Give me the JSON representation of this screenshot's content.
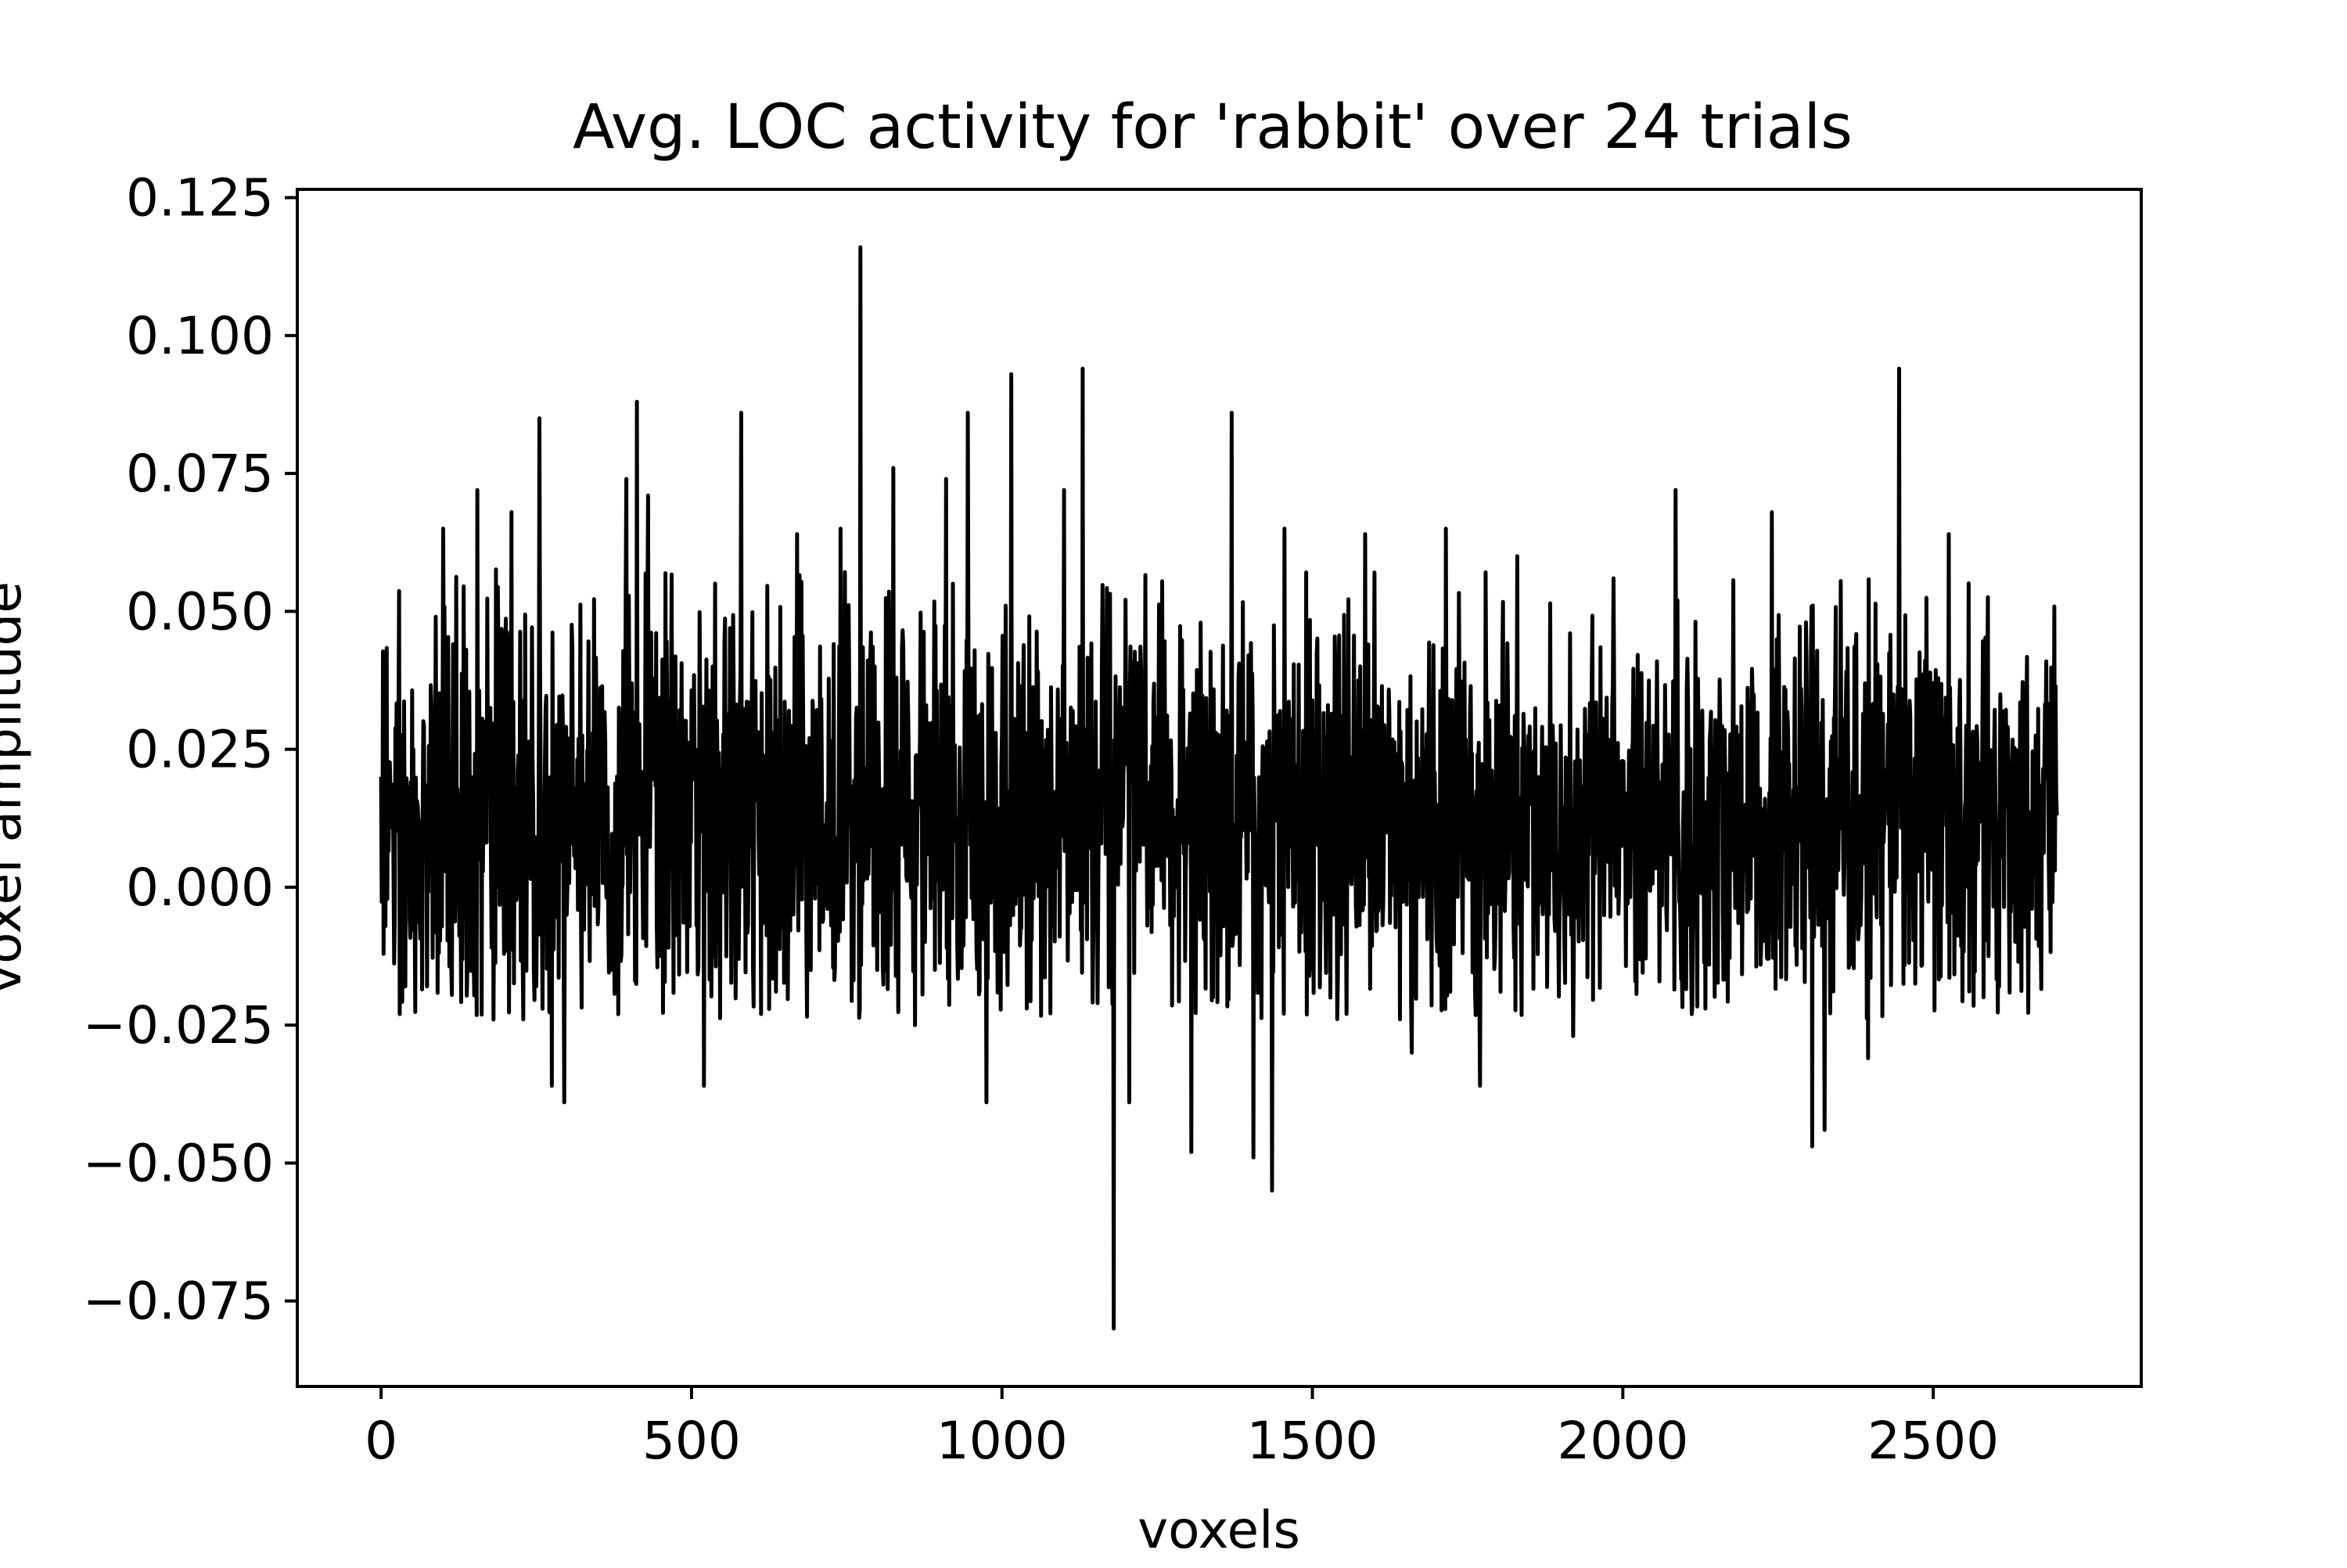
{
  "chart_data": {
    "type": "line",
    "title": "Avg. LOC activity for 'rabbit' over 24 trials",
    "xlabel": "voxels",
    "ylabel": "voxel amplitude",
    "xlim": [
      -135,
      2835
    ],
    "ylim": [
      -0.0905,
      0.1265
    ],
    "xticks": [
      0,
      500,
      1000,
      1500,
      2000,
      2500
    ],
    "xtick_labels": [
      "0",
      "500",
      "1000",
      "1500",
      "2000",
      "2500"
    ],
    "yticks": [
      -0.075,
      -0.05,
      -0.025,
      0.0,
      0.025,
      0.05,
      0.075,
      0.1,
      0.125
    ],
    "ytick_labels": [
      "−0.075",
      "−0.050",
      "−0.025",
      "0.000",
      "0.025",
      "0.050",
      "0.075",
      "0.100",
      "0.125"
    ],
    "grid": false,
    "legend": "none",
    "line_color": "#000000",
    "series": [
      {
        "x_start": 0,
        "x_step": 1,
        "count": 2700,
        "mean": 0.012,
        "noise_sd": 0.019,
        "peaks": [
          {
            "x": 0,
            "y": 0.02
          },
          {
            "x": 5,
            "y": 0.028
          },
          {
            "x": 30,
            "y": -0.023
          },
          {
            "x": 100,
            "y": 0.065
          },
          {
            "x": 155,
            "y": 0.072
          },
          {
            "x": 210,
            "y": 0.068
          },
          {
            "x": 255,
            "y": 0.085
          },
          {
            "x": 275,
            "y": -0.036
          },
          {
            "x": 295,
            "y": -0.039
          },
          {
            "x": 395,
            "y": 0.074
          },
          {
            "x": 412,
            "y": 0.088
          },
          {
            "x": 430,
            "y": 0.071
          },
          {
            "x": 520,
            "y": -0.036
          },
          {
            "x": 580,
            "y": 0.086
          },
          {
            "x": 670,
            "y": 0.064
          },
          {
            "x": 740,
            "y": 0.065
          },
          {
            "x": 772,
            "y": 0.116
          },
          {
            "x": 825,
            "y": 0.076
          },
          {
            "x": 860,
            "y": -0.025
          },
          {
            "x": 910,
            "y": 0.074
          },
          {
            "x": 945,
            "y": 0.086
          },
          {
            "x": 975,
            "y": -0.039
          },
          {
            "x": 1015,
            "y": 0.093
          },
          {
            "x": 1040,
            "y": -0.022
          },
          {
            "x": 1100,
            "y": 0.072
          },
          {
            "x": 1130,
            "y": 0.094
          },
          {
            "x": 1180,
            "y": -0.08
          },
          {
            "x": 1205,
            "y": -0.039
          },
          {
            "x": 1305,
            "y": -0.048
          },
          {
            "x": 1370,
            "y": 0.086
          },
          {
            "x": 1405,
            "y": -0.049
          },
          {
            "x": 1435,
            "y": -0.055
          },
          {
            "x": 1455,
            "y": 0.065
          },
          {
            "x": 1585,
            "y": 0.064
          },
          {
            "x": 1660,
            "y": -0.03
          },
          {
            "x": 1715,
            "y": 0.065
          },
          {
            "x": 1770,
            "y": -0.036
          },
          {
            "x": 1830,
            "y": 0.06
          },
          {
            "x": 1920,
            "y": -0.027
          },
          {
            "x": 1985,
            "y": 0.056
          },
          {
            "x": 2085,
            "y": 0.072
          },
          {
            "x": 2240,
            "y": 0.068
          },
          {
            "x": 2305,
            "y": -0.047
          },
          {
            "x": 2325,
            "y": -0.044
          },
          {
            "x": 2395,
            "y": -0.031
          },
          {
            "x": 2445,
            "y": 0.094
          },
          {
            "x": 2525,
            "y": 0.064
          },
          {
            "x": 2650,
            "y": 0.031
          },
          {
            "x": 2699,
            "y": 0.013
          }
        ]
      }
    ]
  }
}
